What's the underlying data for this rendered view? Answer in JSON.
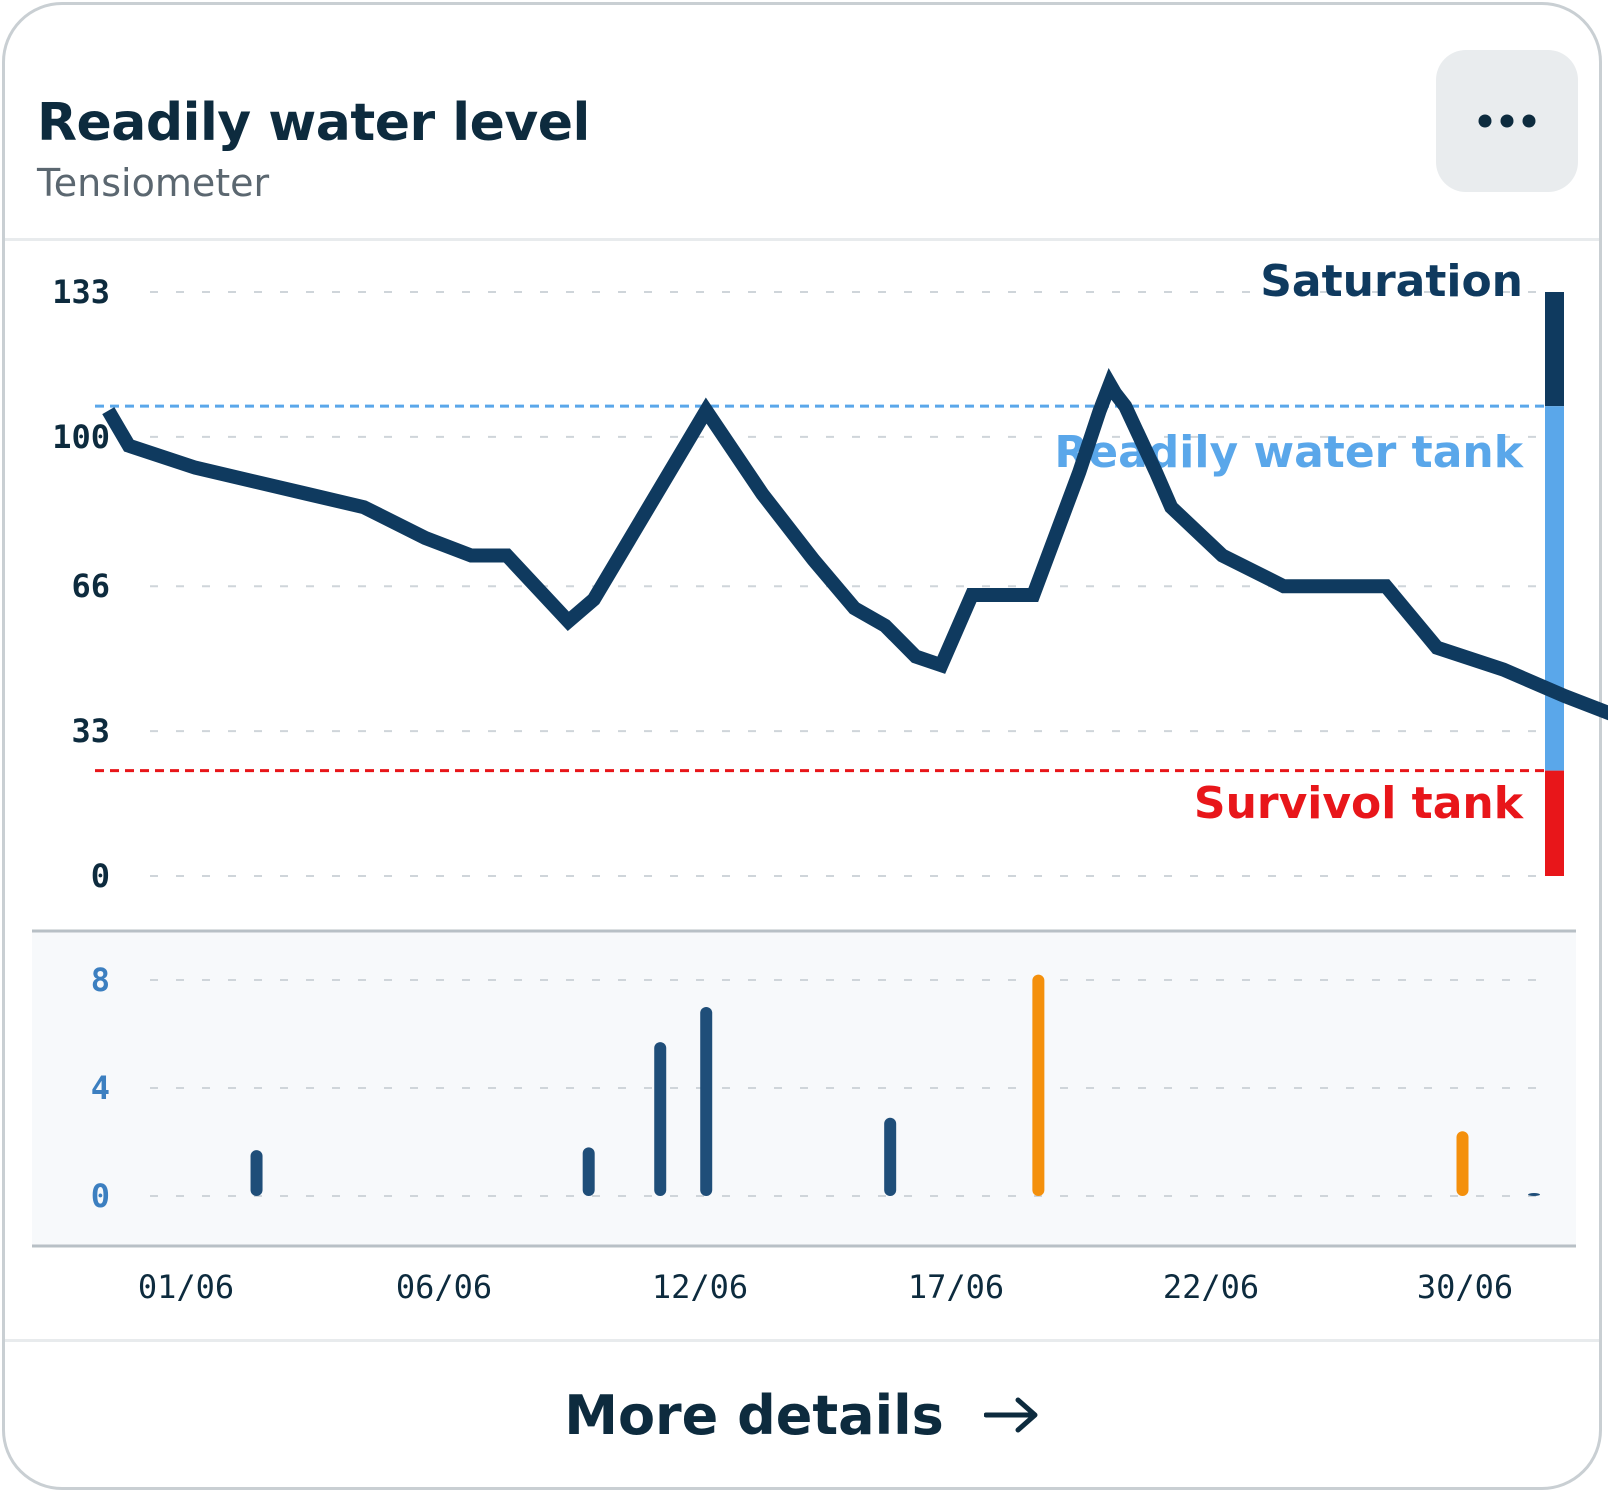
{
  "card": {
    "title": "Readily water level",
    "subtitle": "Tensiometer",
    "more_label": "More details"
  },
  "icons": {
    "menu": "more-horizontal-icon",
    "arrow": "arrow-right-icon"
  },
  "colors": {
    "line": "#0f3a5f",
    "saturation": "#0f3a5f",
    "readily": "#5aa7ea",
    "survival": "#e8161a",
    "irrigation": "#1f4e79",
    "rain": "#f4900c",
    "axis_top": "#0d2b3e",
    "axis_bottom": "#3c7fc0"
  },
  "chart_data": [
    {
      "type": "line",
      "title": "",
      "xlabel": "",
      "ylabel": "",
      "ylim": [
        0,
        133
      ],
      "yticks": [
        "133",
        "100",
        "66",
        "33",
        "0"
      ],
      "grid": true,
      "x_dates": [
        "01/06",
        "06/06",
        "12/06",
        "17/06",
        "22/06",
        "30/06"
      ],
      "series": [
        {
          "x": [
            -1.5,
            -1.1,
            0.2,
            2.4,
            3.5,
            4.7,
            5.6,
            6.3,
            7.5,
            8.0,
            10.2,
            11.3,
            12.3,
            13.1,
            13.7,
            14.3,
            14.8,
            15.4,
            16.6,
            17.5,
            17.9,
            18.1,
            18.2,
            18.4,
            19.0,
            19.3,
            20.3,
            21.5,
            23.5,
            24.5,
            25.8,
            27.0,
            29.0,
            30.3
          ],
          "y": [
            106,
            98,
            93,
            87,
            84,
            77,
            73,
            73,
            58,
            63,
            106,
            87,
            72,
            61,
            57,
            50,
            48,
            64,
            64,
            92,
            106,
            112,
            110,
            107,
            92,
            84,
            73,
            66,
            66,
            52,
            47,
            41,
            32,
            27
          ]
        }
      ],
      "bands": [
        {
          "label": "Saturation",
          "from": 107,
          "to": 133
        },
        {
          "label": "Readily water tank",
          "from": 24,
          "to": 107
        },
        {
          "label": "Survivol tank",
          "from": 0,
          "to": 24
        }
      ],
      "thresholds": [
        107,
        24
      ]
    },
    {
      "type": "bar",
      "title": "",
      "xlabel": "",
      "ylabel": "",
      "ylim": [
        0,
        8
      ],
      "yticks": [
        "8",
        "4",
        "0"
      ],
      "grid": true,
      "bars": [
        {
          "x": 1.4,
          "value": 1.7,
          "kind": "irrigation"
        },
        {
          "x": 7.9,
          "value": 1.8,
          "kind": "irrigation"
        },
        {
          "x": 9.3,
          "value": 5.7,
          "kind": "irrigation"
        },
        {
          "x": 10.2,
          "value": 7.0,
          "kind": "irrigation"
        },
        {
          "x": 13.8,
          "value": 2.9,
          "kind": "irrigation"
        },
        {
          "x": 16.7,
          "value": 8.2,
          "kind": "rain"
        },
        {
          "x": 25.0,
          "value": 2.4,
          "kind": "rain"
        },
        {
          "x": 26.4,
          "value": 0.1,
          "kind": "irrigation"
        }
      ]
    }
  ]
}
